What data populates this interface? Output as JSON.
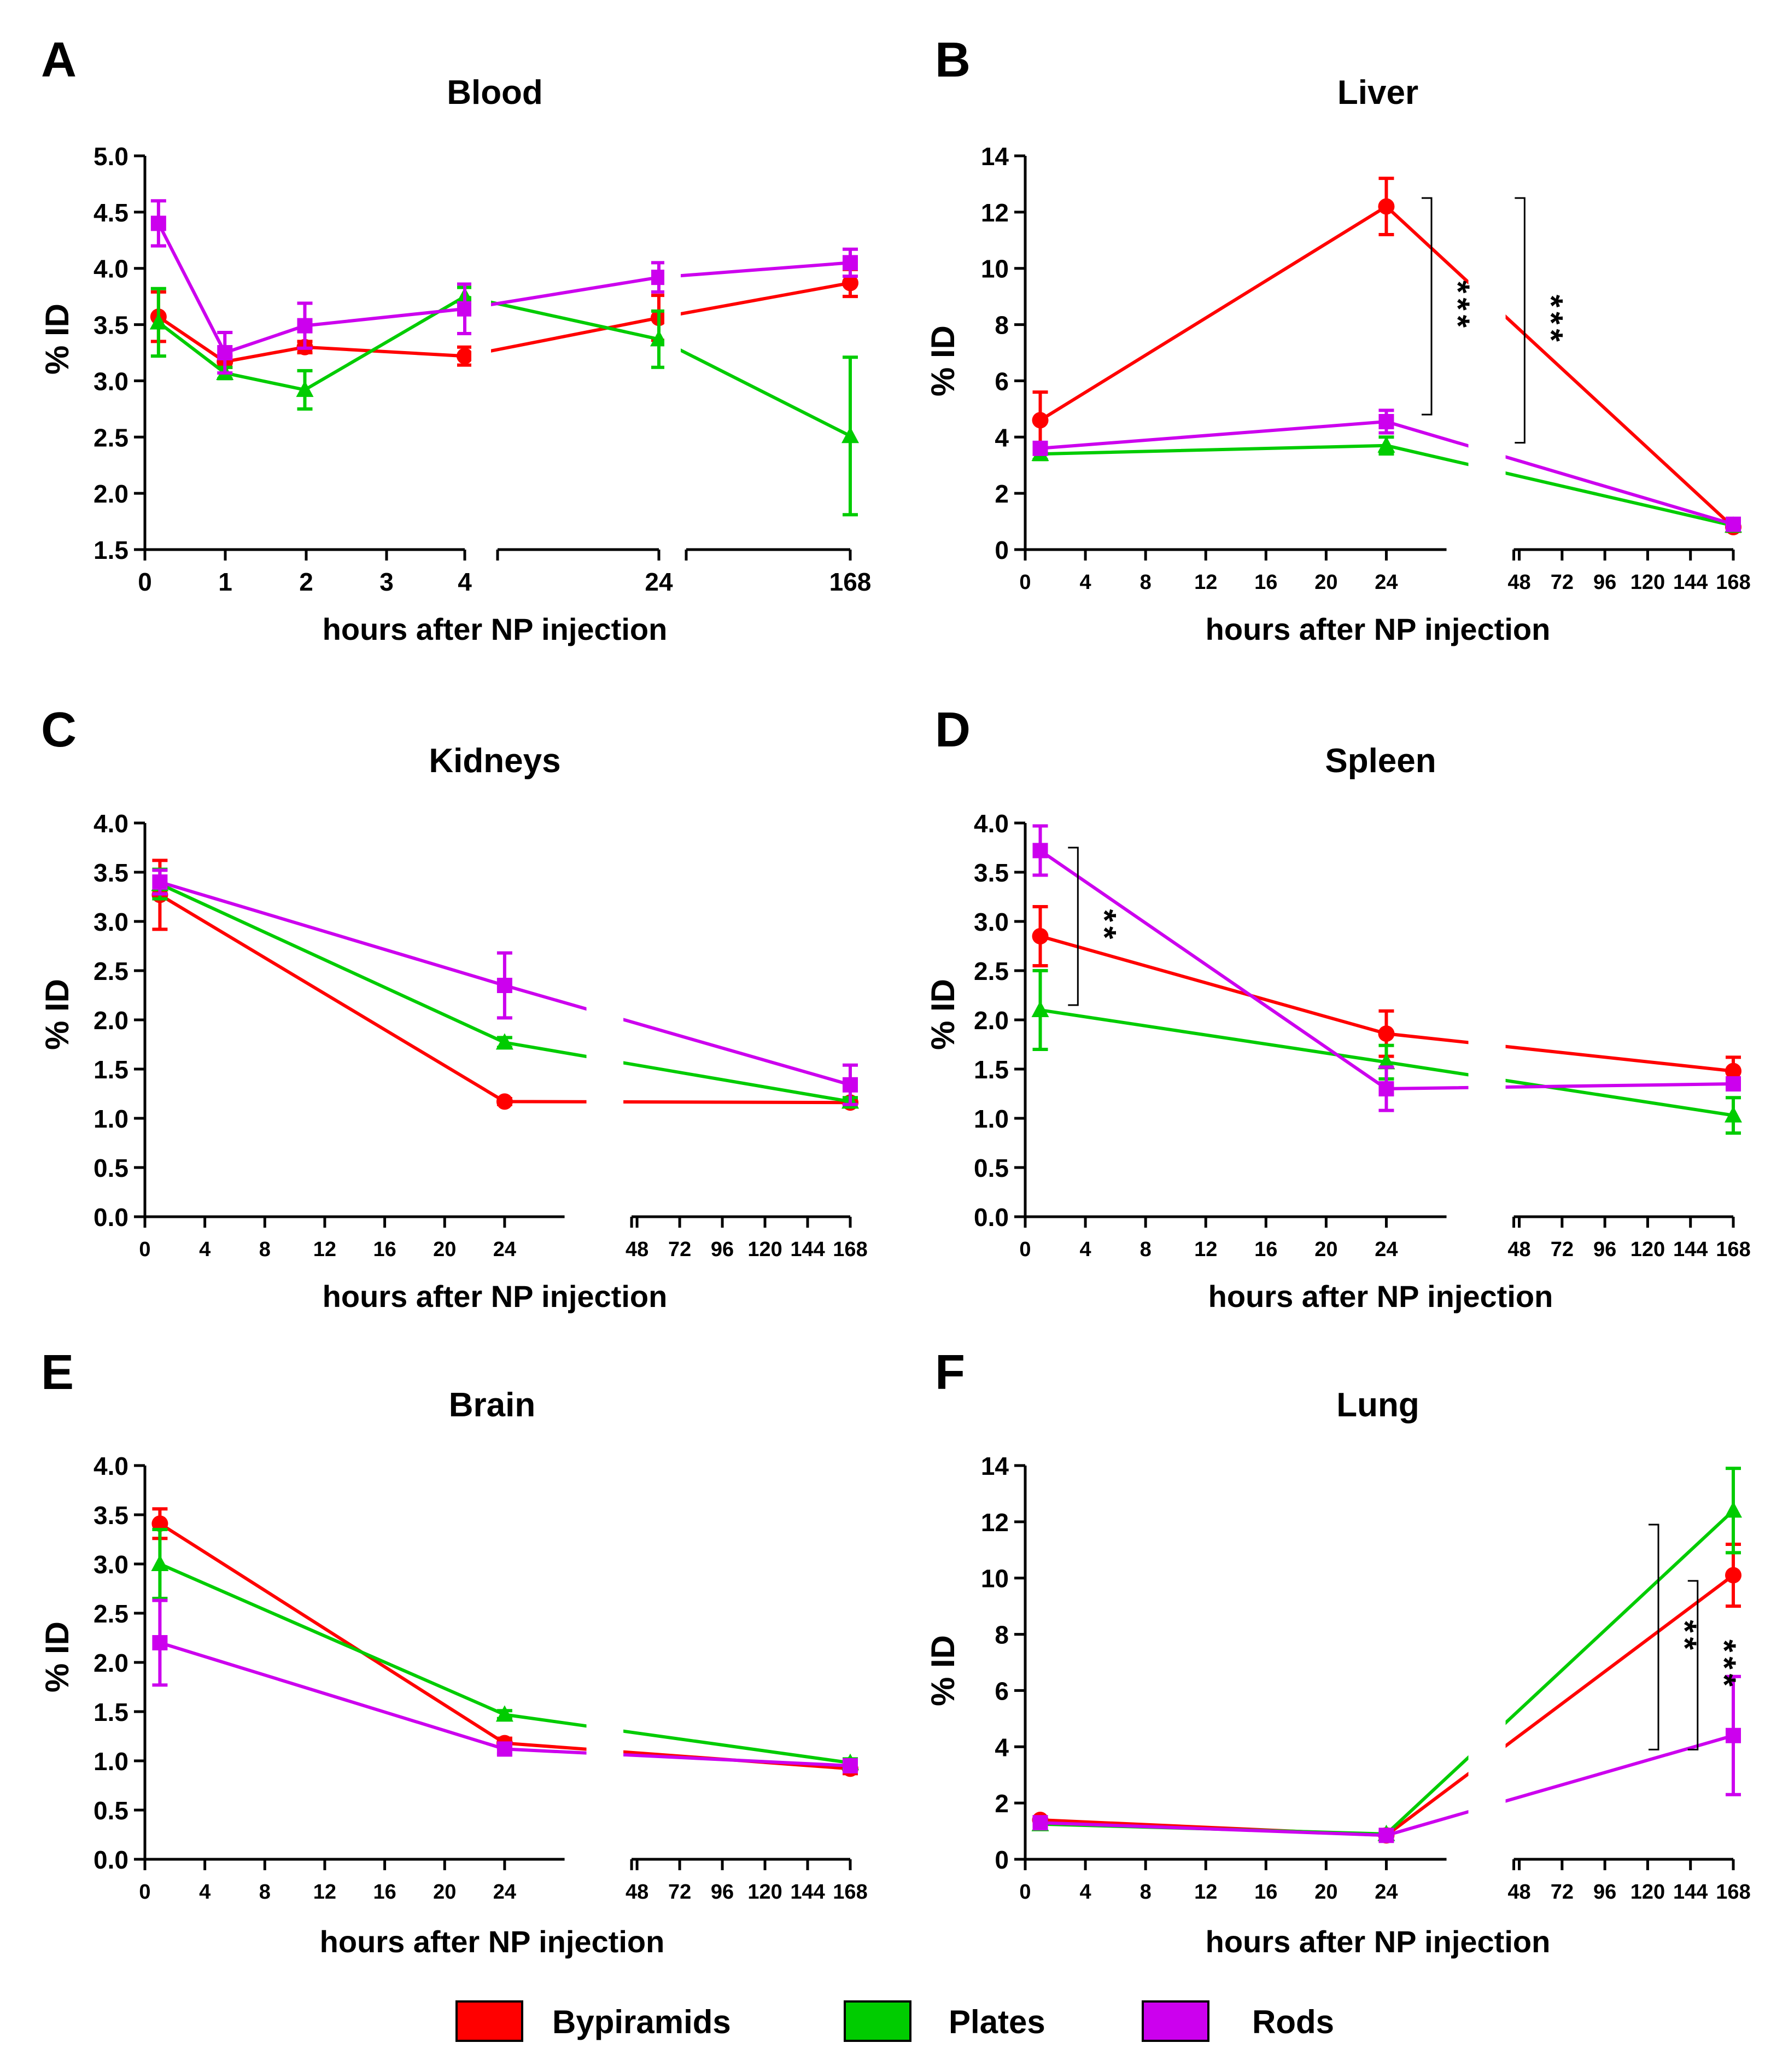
{
  "figure": {
    "colors": {
      "Bypiramids": "#ff0000",
      "Plates": "#00cc00",
      "Rods": "#cc00ee"
    },
    "legend": [
      {
        "name": "Bypiramids",
        "color": "#ff0000"
      },
      {
        "name": "Plates",
        "color": "#00cc00"
      },
      {
        "name": "Rods",
        "color": "#cc00ee"
      }
    ]
  },
  "chart_data": [
    {
      "type": "line",
      "panel": "A",
      "title": "Blood",
      "xlabel": "hours after NP injection",
      "ylabel": "% ID",
      "ylim": [
        1.5,
        5.0
      ],
      "yticks": [
        "1.5",
        "2.0",
        "2.5",
        "3.0",
        "3.5",
        "4.0",
        "4.5",
        "5.0"
      ],
      "xaxis_kind": "categorical",
      "xticks": [
        "0",
        "1",
        "2",
        "3",
        "4",
        "24",
        "168"
      ],
      "series": [
        {
          "name": "Bypiramids",
          "x": [
            0.17,
            1,
            2,
            4,
            24,
            168
          ],
          "y": [
            3.57,
            3.17,
            3.3,
            3.22,
            3.56,
            3.87
          ],
          "err": [
            0.22,
            0.05,
            0.05,
            0.08,
            0.2,
            0.12
          ]
        },
        {
          "name": "Plates",
          "x": [
            0.17,
            1,
            2,
            4,
            24,
            168
          ],
          "y": [
            3.52,
            3.07,
            2.92,
            3.75,
            3.37,
            2.51
          ],
          "err": [
            0.3,
            0.05,
            0.17,
            0.08,
            0.25,
            0.7
          ]
        },
        {
          "name": "Rods",
          "x": [
            0.17,
            1,
            2,
            4,
            24,
            168
          ],
          "y": [
            4.4,
            3.25,
            3.49,
            3.64,
            3.92,
            4.05
          ],
          "err": [
            0.2,
            0.18,
            0.2,
            0.22,
            0.13,
            0.12
          ]
        }
      ],
      "annotations": []
    },
    {
      "type": "line",
      "panel": "B",
      "title": "Liver",
      "xlabel": "hours after NP injection",
      "ylabel": "% ID",
      "ylim": [
        0,
        14
      ],
      "yticks": [
        "0",
        "2",
        "4",
        "6",
        "8",
        "10",
        "12",
        "14"
      ],
      "xaxis_kind": "broken",
      "xticks_left": [
        "0",
        "4",
        "8",
        "12",
        "16",
        "20",
        "24"
      ],
      "xticks_right": [
        "48",
        "72",
        "96",
        "120",
        "144",
        "168"
      ],
      "series": [
        {
          "name": "Bypiramids",
          "x": [
            1,
            24,
            168
          ],
          "y": [
            4.6,
            12.2,
            0.8
          ],
          "err": [
            1.0,
            1.0,
            0.15
          ]
        },
        {
          "name": "Plates",
          "x": [
            1,
            24,
            168
          ],
          "y": [
            3.4,
            3.7,
            0.85
          ],
          "err": [
            0.2,
            0.3,
            0.1
          ]
        },
        {
          "name": "Rods",
          "x": [
            1,
            24,
            168
          ],
          "y": [
            3.6,
            4.55,
            0.9
          ],
          "err": [
            0.15,
            0.4,
            0.1
          ]
        }
      ],
      "annotations": [
        {
          "label": "***",
          "x": 27,
          "y_low": 4.8,
          "y_high": 12.5
        },
        {
          "label": "***",
          "x": 51,
          "y_low": 3.8,
          "y_high": 12.5
        }
      ]
    },
    {
      "type": "line",
      "panel": "C",
      "title": "Kidneys",
      "xlabel": "hours after NP injection",
      "ylabel": "% ID",
      "ylim": [
        0.0,
        4.0
      ],
      "yticks": [
        "0.0",
        "0.5",
        "1.0",
        "1.5",
        "2.0",
        "2.5",
        "3.0",
        "3.5",
        "4.0"
      ],
      "xaxis_kind": "broken",
      "xticks_left": [
        "0",
        "4",
        "8",
        "12",
        "16",
        "20",
        "24"
      ],
      "xticks_right": [
        "48",
        "72",
        "96",
        "120",
        "144",
        "168"
      ],
      "series": [
        {
          "name": "Bypiramids",
          "x": [
            1,
            24,
            168
          ],
          "y": [
            3.27,
            1.17,
            1.16
          ],
          "err": [
            0.35,
            0.03,
            0.03
          ]
        },
        {
          "name": "Plates",
          "x": [
            1,
            24,
            168
          ],
          "y": [
            3.38,
            1.77,
            1.17
          ],
          "err": [
            0.15,
            0.05,
            0.04
          ]
        },
        {
          "name": "Rods",
          "x": [
            1,
            24,
            168
          ],
          "y": [
            3.4,
            2.35,
            1.34
          ],
          "err": [
            0.12,
            0.33,
            0.2
          ]
        }
      ],
      "annotations": []
    },
    {
      "type": "line",
      "panel": "D",
      "title": "Spleen",
      "xlabel": "hours after NP injection",
      "ylabel": "% ID",
      "ylim": [
        0.0,
        4.0
      ],
      "yticks": [
        "0.0",
        "0.5",
        "1.0",
        "1.5",
        "2.0",
        "2.5",
        "3.0",
        "3.5",
        "4.0"
      ],
      "xaxis_kind": "broken",
      "xticks_left": [
        "0",
        "4",
        "8",
        "12",
        "16",
        "20",
        "24"
      ],
      "xticks_right": [
        "48",
        "72",
        "96",
        "120",
        "144",
        "168"
      ],
      "series": [
        {
          "name": "Bypiramids",
          "x": [
            1,
            24,
            168
          ],
          "y": [
            2.85,
            1.86,
            1.48
          ],
          "err": [
            0.3,
            0.23,
            0.14
          ]
        },
        {
          "name": "Plates",
          "x": [
            1,
            24,
            168
          ],
          "y": [
            2.1,
            1.57,
            1.03
          ],
          "err": [
            0.4,
            0.17,
            0.18
          ]
        },
        {
          "name": "Rods",
          "x": [
            1,
            24,
            168
          ],
          "y": [
            3.72,
            1.3,
            1.35
          ],
          "err": [
            0.25,
            0.22,
            0.03
          ]
        }
      ],
      "annotations": [
        {
          "label": "**",
          "x": 3.5,
          "y_low": 2.15,
          "y_high": 3.75
        }
      ]
    },
    {
      "type": "line",
      "panel": "E",
      "title": "Brain",
      "xlabel": "hours after NP injection",
      "ylabel": "% ID",
      "ylim": [
        0.0,
        4.0
      ],
      "yticks": [
        "0.0",
        "0.5",
        "1.0",
        "1.5",
        "2.0",
        "2.5",
        "3.0",
        "3.5",
        "4.0"
      ],
      "xaxis_kind": "broken",
      "xticks_left": [
        "0",
        "4",
        "8",
        "12",
        "16",
        "20",
        "24"
      ],
      "xticks_right": [
        "48",
        "72",
        "96",
        "120",
        "144",
        "168"
      ],
      "series": [
        {
          "name": "Bypiramids",
          "x": [
            1,
            24,
            168
          ],
          "y": [
            3.41,
            1.18,
            0.92
          ],
          "err": [
            0.15,
            0.05,
            0.05
          ]
        },
        {
          "name": "Plates",
          "x": [
            1,
            24,
            168
          ],
          "y": [
            3.0,
            1.47,
            0.98
          ],
          "err": [
            0.35,
            0.04,
            0.04
          ]
        },
        {
          "name": "Rods",
          "x": [
            1,
            24,
            168
          ],
          "y": [
            2.2,
            1.12,
            0.95
          ],
          "err": [
            0.43,
            0.05,
            0.04
          ]
        }
      ],
      "annotations": []
    },
    {
      "type": "line",
      "panel": "F",
      "title": "Lung",
      "xlabel": "hours after NP injection",
      "ylabel": "% ID",
      "ylim": [
        0,
        14
      ],
      "yticks": [
        "0",
        "2",
        "4",
        "6",
        "8",
        "10",
        "12",
        "14"
      ],
      "xaxis_kind": "broken",
      "xticks_left": [
        "0",
        "4",
        "8",
        "12",
        "16",
        "20",
        "24"
      ],
      "xticks_right": [
        "48",
        "72",
        "96",
        "120",
        "144",
        "168"
      ],
      "series": [
        {
          "name": "Bypiramids",
          "x": [
            1,
            24,
            168
          ],
          "y": [
            1.4,
            0.85,
            10.1
          ],
          "err": [
            0.1,
            0.1,
            1.1
          ]
        },
        {
          "name": "Plates",
          "x": [
            1,
            24,
            168
          ],
          "y": [
            1.25,
            0.9,
            12.4
          ],
          "err": [
            0.1,
            0.1,
            1.5
          ]
        },
        {
          "name": "Rods",
          "x": [
            1,
            24,
            168
          ],
          "y": [
            1.3,
            0.85,
            4.4
          ],
          "err": [
            0.1,
            0.1,
            2.1
          ]
        }
      ],
      "annotations": [
        {
          "label": "**",
          "x": 126,
          "y_low": 3.9,
          "y_high": 11.9
        },
        {
          "label": "***",
          "x": 148,
          "y_low": 3.9,
          "y_high": 9.9
        }
      ]
    }
  ]
}
